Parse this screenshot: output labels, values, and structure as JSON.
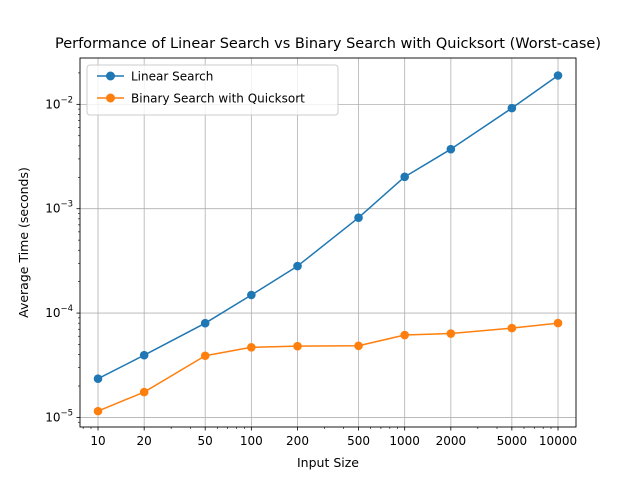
{
  "chart_data": {
    "type": "line",
    "title": "Performance of Linear Search vs Binary Search with Quicksort (Worst-case)",
    "xlabel": "Input Size",
    "ylabel": "Average Time (seconds)",
    "x_scale": "log",
    "y_scale": "log",
    "x": [
      10,
      20,
      50,
      100,
      200,
      500,
      1000,
      2000,
      5000,
      10000
    ],
    "x_tick_labels": [
      "10",
      "20",
      "50",
      "100",
      "200",
      "500",
      "1000",
      "2000",
      "5000",
      "10000"
    ],
    "xlim": [
      7.63,
      13100
    ],
    "ylim": [
      8.1e-06,
      0.0278
    ],
    "y_ticks": [
      {
        "value": 1e-05,
        "base": "10",
        "exp": "−5"
      },
      {
        "value": 0.0001,
        "base": "10",
        "exp": "−4"
      },
      {
        "value": 0.001,
        "base": "10",
        "exp": "−3"
      },
      {
        "value": 0.01,
        "base": "10",
        "exp": "−2"
      }
    ],
    "grid": true,
    "legend_position": "upper-left",
    "series": [
      {
        "name": "Linear Search",
        "color": "#1f77b4",
        "values": [
          2.35e-05,
          3.95e-05,
          8e-05,
          0.000149,
          0.000282,
          0.00082,
          0.00202,
          0.00372,
          0.0092,
          0.0189
        ]
      },
      {
        "name": "Binary Search with Quicksort",
        "color": "#ff7f0e",
        "values": [
          1.15e-05,
          1.75e-05,
          3.9e-05,
          4.7e-05,
          4.82e-05,
          4.86e-05,
          6.16e-05,
          6.37e-05,
          7.18e-05,
          8.02e-05
        ]
      }
    ]
  }
}
